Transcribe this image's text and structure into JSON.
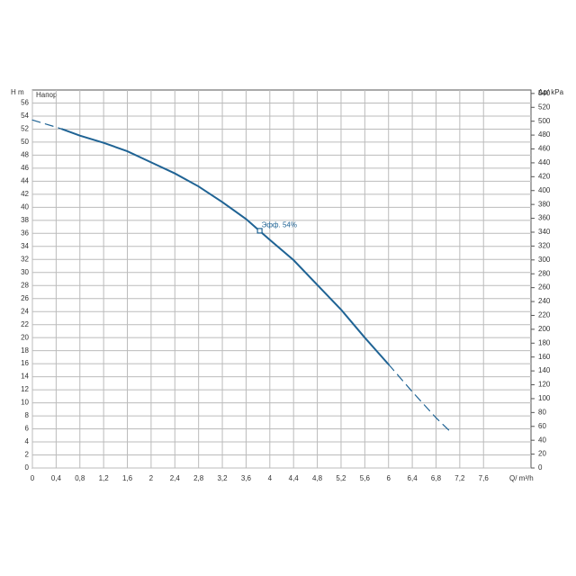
{
  "chart_data": {
    "type": "line",
    "panel_label": "Напор",
    "ylabel": "H m",
    "y2label": "Δp/ kPa",
    "xlabel": "Q/ m³/h",
    "color": "#1f6394",
    "grid": true,
    "xlim": [
      0,
      8.4
    ],
    "ylim": [
      0,
      58
    ],
    "y2lim": [
      0,
      545
    ],
    "xticks": [
      0,
      {
        "value": 0.4,
        "label": "0,4"
      },
      {
        "value": 0.8,
        "label": "0,8"
      },
      {
        "value": 1.2,
        "label": "1,2"
      },
      {
        "value": 1.6,
        "label": "1,6"
      },
      2,
      {
        "value": 2.4,
        "label": "2,4"
      },
      {
        "value": 2.8,
        "label": "2,8"
      },
      {
        "value": 3.2,
        "label": "3,2"
      },
      {
        "value": 3.6,
        "label": "3,6"
      },
      4,
      {
        "value": 4.4,
        "label": "4,4"
      },
      {
        "value": 4.8,
        "label": "4,8"
      },
      {
        "value": 5.2,
        "label": "5,2"
      },
      {
        "value": 5.6,
        "label": "5,6"
      },
      6,
      {
        "value": 6.4,
        "label": "6,4"
      },
      {
        "value": 6.8,
        "label": "6,8"
      },
      {
        "value": 7.2,
        "label": "7,2"
      },
      {
        "value": 7.6,
        "label": "7,6"
      }
    ],
    "yticks": [
      0,
      2,
      4,
      6,
      8,
      10,
      12,
      14,
      16,
      18,
      20,
      22,
      24,
      26,
      28,
      30,
      32,
      34,
      36,
      38,
      40,
      42,
      44,
      46,
      48,
      50,
      52,
      54,
      56
    ],
    "y2ticks": [
      0,
      20,
      40,
      60,
      80,
      100,
      120,
      140,
      160,
      180,
      200,
      220,
      240,
      260,
      280,
      300,
      320,
      340,
      360,
      380,
      400,
      420,
      440,
      460,
      480,
      500,
      520,
      540
    ],
    "series": [
      {
        "dashed": true,
        "x": [
          0,
          0.4,
          0.5
        ],
        "values": [
          53.4,
          52.3,
          52.0
        ]
      },
      {
        "dashed": false,
        "x": [
          0.5,
          0.8,
          1.2,
          1.6,
          2,
          2.4,
          2.8,
          3.2,
          3.6,
          4,
          4.4,
          4.8,
          5.2,
          5.6,
          6
        ],
        "values": [
          52.0,
          51.0,
          49.9,
          48.6,
          46.9,
          45.2,
          43.2,
          40.8,
          38.2,
          35.0,
          31.9,
          28.1,
          24.3,
          20.0,
          15.9
        ]
      },
      {
        "dashed": true,
        "x": [
          6,
          6.4,
          6.8,
          7.05
        ],
        "values": [
          15.9,
          11.7,
          7.7,
          5.5
        ]
      }
    ],
    "annotations": [
      {
        "text": "Эфф. 54%",
        "x": 3.83,
        "y": 36.4
      }
    ]
  }
}
